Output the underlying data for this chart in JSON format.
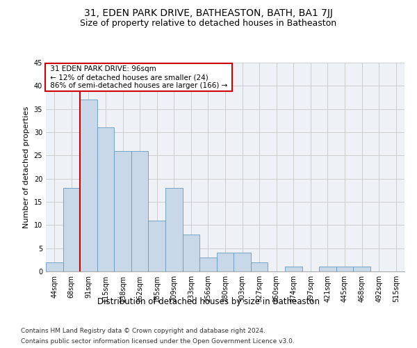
{
  "title": "31, EDEN PARK DRIVE, BATHEASTON, BATH, BA1 7JJ",
  "subtitle": "Size of property relative to detached houses in Batheaston",
  "xlabel": "Distribution of detached houses by size in Batheaston",
  "ylabel": "Number of detached properties",
  "bar_color": "#c8d8e8",
  "bar_edge_color": "#6699bb",
  "background_color": "#eef2f7",
  "grid_color": "#c8c8c8",
  "categories": [
    "44sqm",
    "68sqm",
    "91sqm",
    "115sqm",
    "138sqm",
    "162sqm",
    "185sqm",
    "209sqm",
    "233sqm",
    "256sqm",
    "280sqm",
    "303sqm",
    "327sqm",
    "350sqm",
    "374sqm",
    "397sqm",
    "421sqm",
    "445sqm",
    "468sqm",
    "492sqm",
    "515sqm"
  ],
  "values": [
    2,
    18,
    37,
    31,
    26,
    26,
    11,
    18,
    8,
    3,
    4,
    4,
    2,
    0,
    1,
    0,
    1,
    1,
    1,
    0,
    0
  ],
  "ylim": [
    0,
    45
  ],
  "yticks": [
    0,
    5,
    10,
    15,
    20,
    25,
    30,
    35,
    40,
    45
  ],
  "annotation_line1": "31 EDEN PARK DRIVE: 96sqm",
  "annotation_line2": "← 12% of detached houses are smaller (24)",
  "annotation_line3": "86% of semi-detached houses are larger (166) →",
  "annotation_box_color": "#ffffff",
  "annotation_box_edge_color": "#cc0000",
  "vline_color": "#cc0000",
  "vline_x": 2,
  "footer1": "Contains HM Land Registry data © Crown copyright and database right 2024.",
  "footer2": "Contains public sector information licensed under the Open Government Licence v3.0.",
  "title_fontsize": 10,
  "subtitle_fontsize": 9,
  "xlabel_fontsize": 8.5,
  "ylabel_fontsize": 8,
  "tick_fontsize": 7,
  "annotation_fontsize": 7.5,
  "footer_fontsize": 6.5
}
